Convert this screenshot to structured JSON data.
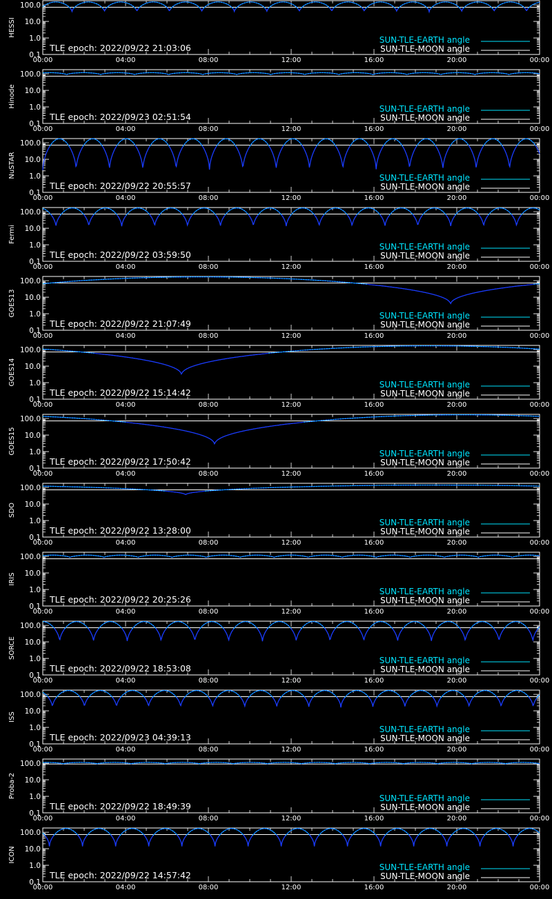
{
  "legend": {
    "earth_label": "SUN-TLE-EARTH angle",
    "moon_label": "SUN-TLE-MOON angle",
    "placement": "bottom-right"
  },
  "colors": {
    "background": "#000000",
    "axes": "#ffffff",
    "earth_angle": "#00e5ff",
    "earth_angle_dark": "#1a3cff",
    "moon_angle": "#ffffff"
  },
  "chart_data": [
    {
      "type": "line",
      "satellite": "HESSI",
      "epoch_label": "TLE epoch: 2022/09/22 21:03:06",
      "x_ticks": [
        "00:00",
        "04:00",
        "08:00",
        "12:00",
        "16:00",
        "20:00",
        "00:00"
      ],
      "y_ticks": [
        "0.1",
        "1.0",
        "10.0",
        "100.0"
      ],
      "yscale": "log",
      "ylim": [
        0.1,
        180
      ],
      "xlim_hours": [
        0,
        24
      ],
      "series": [
        {
          "name": "SUN-TLE-EARTH angle",
          "shape": "periodic",
          "orbits_per_day": 15.3,
          "max": 150,
          "min": 38,
          "phase": 0.1
        },
        {
          "name": "SUN-TLE-MOON angle",
          "shape": "constant",
          "value": 72
        }
      ]
    },
    {
      "type": "line",
      "satellite": "Hinode",
      "epoch_label": "TLE epoch: 2022/09/23 02:51:54",
      "x_ticks": [
        "00:00",
        "04:00",
        "08:00",
        "12:00",
        "16:00",
        "20:00",
        "00:00"
      ],
      "y_ticks": [
        "0.1",
        "1.0",
        "10.0",
        "100.0"
      ],
      "yscale": "log",
      "ylim": [
        0.1,
        180
      ],
      "xlim_hours": [
        0,
        24
      ],
      "series": [
        {
          "name": "SUN-TLE-EARTH angle",
          "shape": "periodic",
          "orbits_per_day": 14.6,
          "max": 118,
          "min": 88,
          "phase": 0.3
        },
        {
          "name": "SUN-TLE-MOON angle",
          "shape": "constant",
          "value": 72
        }
      ]
    },
    {
      "type": "line",
      "satellite": "NuSTAR",
      "epoch_label": "TLE epoch: 2022/09/22 20:55:57",
      "x_ticks": [
        "00:00",
        "04:00",
        "08:00",
        "12:00",
        "16:00",
        "20:00",
        "00:00"
      ],
      "y_ticks": [
        "0.1",
        "1.0",
        "10.0",
        "100.0"
      ],
      "yscale": "log",
      "ylim": [
        0.1,
        180
      ],
      "xlim_hours": [
        0,
        24
      ],
      "series": [
        {
          "name": "SUN-TLE-EARTH angle",
          "shape": "periodic",
          "orbits_per_day": 14.9,
          "max": 175,
          "min": 2.2,
          "phase": 0.0
        },
        {
          "name": "SUN-TLE-MOON angle",
          "shape": "constant",
          "value": 72
        }
      ]
    },
    {
      "type": "line",
      "satellite": "Fermi",
      "epoch_label": "TLE epoch: 2022/09/22 03:59:50",
      "x_ticks": [
        "00:00",
        "04:00",
        "08:00",
        "12:00",
        "16:00",
        "20:00",
        "00:00"
      ],
      "y_ticks": [
        "0.1",
        "1.0",
        "10.0",
        "100.0"
      ],
      "yscale": "log",
      "ylim": [
        0.1,
        180
      ],
      "xlim_hours": [
        0,
        24
      ],
      "series": [
        {
          "name": "SUN-TLE-EARTH angle",
          "shape": "periodic",
          "orbits_per_day": 15.1,
          "max": 170,
          "min": 12,
          "phase": 0.6
        },
        {
          "name": "SUN-TLE-MOON angle",
          "shape": "constant",
          "value": 72
        }
      ]
    },
    {
      "type": "line",
      "satellite": "GOES13",
      "epoch_label": "TLE epoch: 2022/09/22 21:07:49",
      "x_ticks": [
        "00:00",
        "04:00",
        "08:00",
        "12:00",
        "16:00",
        "20:00",
        "00:00"
      ],
      "y_ticks": [
        "0.1",
        "1.0",
        "10.0",
        "100.0"
      ],
      "yscale": "log",
      "ylim": [
        0.1,
        180
      ],
      "xlim_hours": [
        0,
        24
      ],
      "series": [
        {
          "name": "SUN-TLE-EARTH angle",
          "shape": "geo",
          "min_hour": 19.7,
          "min": 3.5,
          "max": 170
        },
        {
          "name": "SUN-TLE-MOON angle",
          "shape": "constant",
          "value": 72
        }
      ]
    },
    {
      "type": "line",
      "satellite": "GOES14",
      "epoch_label": "TLE epoch: 2022/09/22 15:14:42",
      "x_ticks": [
        "00:00",
        "04:00",
        "08:00",
        "12:00",
        "16:00",
        "20:00",
        "00:00"
      ],
      "y_ticks": [
        "0.1",
        "1.0",
        "10.0",
        "100.0"
      ],
      "yscale": "log",
      "ylim": [
        0.1,
        180
      ],
      "xlim_hours": [
        0,
        24
      ],
      "series": [
        {
          "name": "SUN-TLE-EARTH angle",
          "shape": "geo",
          "min_hour": 6.7,
          "min": 2.8,
          "max": 170
        },
        {
          "name": "SUN-TLE-MOON angle",
          "shape": "constant",
          "value": 72
        }
      ]
    },
    {
      "type": "line",
      "satellite": "GOES15",
      "epoch_label": "TLE epoch: 2022/09/22 17:50:42",
      "x_ticks": [
        "00:00",
        "04:00",
        "08:00",
        "12:00",
        "16:00",
        "20:00",
        "00:00"
      ],
      "y_ticks": [
        "0.1",
        "1.0",
        "10.0",
        "100.0"
      ],
      "yscale": "log",
      "ylim": [
        0.1,
        180
      ],
      "xlim_hours": [
        0,
        24
      ],
      "series": [
        {
          "name": "SUN-TLE-EARTH angle",
          "shape": "geo",
          "min_hour": 8.3,
          "min": 2.5,
          "max": 170
        },
        {
          "name": "SUN-TLE-MOON angle",
          "shape": "constant",
          "value": 72
        }
      ]
    },
    {
      "type": "line",
      "satellite": "SDO",
      "epoch_label": "TLE epoch: 2022/09/22 13:28:00",
      "x_ticks": [
        "00:00",
        "04:00",
        "08:00",
        "12:00",
        "16:00",
        "20:00",
        "00:00"
      ],
      "y_ticks": [
        "0.1",
        "1.0",
        "10.0",
        "100.0"
      ],
      "yscale": "log",
      "ylim": [
        0.1,
        180
      ],
      "xlim_hours": [
        0,
        24
      ],
      "series": [
        {
          "name": "SUN-TLE-EARTH angle",
          "shape": "geo",
          "min_hour": 6.9,
          "min": 35,
          "max": 140
        },
        {
          "name": "SUN-TLE-MOON angle",
          "shape": "constant",
          "value": 72
        }
      ]
    },
    {
      "type": "line",
      "satellite": "IRIS",
      "epoch_label": "TLE epoch: 2022/09/22 20:25:26",
      "x_ticks": [
        "00:00",
        "04:00",
        "08:00",
        "12:00",
        "16:00",
        "20:00",
        "00:00"
      ],
      "y_ticks": [
        "0.1",
        "1.0",
        "10.0",
        "100.0"
      ],
      "yscale": "log",
      "ylim": [
        0.1,
        180
      ],
      "xlim_hours": [
        0,
        24
      ],
      "series": [
        {
          "name": "SUN-TLE-EARTH angle",
          "shape": "periodic",
          "orbits_per_day": 14.6,
          "max": 120,
          "min": 85,
          "phase": 0.2
        },
        {
          "name": "SUN-TLE-MOON angle",
          "shape": "constant",
          "value": 72
        }
      ]
    },
    {
      "type": "line",
      "satellite": "SORCE",
      "epoch_label": "TLE epoch: 2022/09/22 18:53:08",
      "x_ticks": [
        "00:00",
        "04:00",
        "08:00",
        "12:00",
        "16:00",
        "20:00",
        "00:00"
      ],
      "y_ticks": [
        "0.1",
        "1.0",
        "10.0",
        "100.0"
      ],
      "yscale": "log",
      "ylim": [
        0.1,
        180
      ],
      "xlim_hours": [
        0,
        24
      ],
      "series": [
        {
          "name": "SUN-TLE-EARTH angle",
          "shape": "periodic",
          "orbits_per_day": 14.7,
          "max": 170,
          "min": 10,
          "phase": 0.5
        },
        {
          "name": "SUN-TLE-MOON angle",
          "shape": "constant",
          "value": 72
        }
      ]
    },
    {
      "type": "line",
      "satellite": "ISS",
      "epoch_label": "TLE epoch: 2022/09/23 04:39:13",
      "x_ticks": [
        "00:00",
        "04:00",
        "08:00",
        "12:00",
        "16:00",
        "20:00",
        "00:00"
      ],
      "y_ticks": [
        "0.1",
        "1.0",
        "10.0",
        "100.0"
      ],
      "yscale": "log",
      "ylim": [
        0.1,
        180
      ],
      "xlim_hours": [
        0,
        24
      ],
      "series": [
        {
          "name": "SUN-TLE-EARTH angle",
          "shape": "periodic",
          "orbits_per_day": 15.5,
          "max": 170,
          "min": 16,
          "phase": 0.7
        },
        {
          "name": "SUN-TLE-MOON angle",
          "shape": "constant",
          "value": 72
        }
      ]
    },
    {
      "type": "line",
      "satellite": "Proba-2",
      "epoch_label": "TLE epoch: 2022/09/22 18:49:39",
      "x_ticks": [
        "00:00",
        "04:00",
        "08:00",
        "12:00",
        "16:00",
        "20:00",
        "00:00"
      ],
      "y_ticks": [
        "0.1",
        "1.0",
        "10.0",
        "100.0"
      ],
      "yscale": "log",
      "ylim": [
        0.1,
        180
      ],
      "xlim_hours": [
        0,
        24
      ],
      "series": [
        {
          "name": "SUN-TLE-EARTH angle",
          "shape": "periodic",
          "orbits_per_day": 14.6,
          "max": 112,
          "min": 92,
          "phase": 0.4
        },
        {
          "name": "SUN-TLE-MOON angle",
          "shape": "constant",
          "value": 90
        }
      ]
    },
    {
      "type": "line",
      "satellite": "ICON",
      "epoch_label": "TLE epoch: 2022/09/22 14:57:42",
      "x_ticks": [
        "00:00",
        "04:00",
        "08:00",
        "12:00",
        "16:00",
        "20:00",
        "00:00"
      ],
      "y_ticks": [
        "0.1",
        "1.0",
        "10.0",
        "100.0"
      ],
      "yscale": "log",
      "ylim": [
        0.1,
        180
      ],
      "xlim_hours": [
        0,
        24
      ],
      "series": [
        {
          "name": "SUN-TLE-EARTH angle",
          "shape": "periodic",
          "orbits_per_day": 15.0,
          "max": 168,
          "min": 14,
          "phase": 0.8
        },
        {
          "name": "SUN-TLE-MOON angle",
          "shape": "constant",
          "value": 72
        }
      ]
    }
  ]
}
